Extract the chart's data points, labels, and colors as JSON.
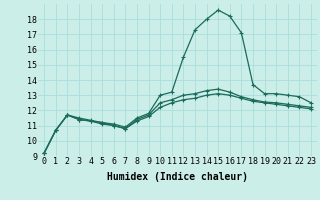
{
  "xlabel": "Humidex (Indice chaleur)",
  "background_color": "#cceee8",
  "grid_color": "#aadddd",
  "line_color": "#1a6b5a",
  "xlim": [
    -0.5,
    23.5
  ],
  "ylim": [
    9,
    19
  ],
  "yticks": [
    9,
    10,
    11,
    12,
    13,
    14,
    15,
    16,
    17,
    18
  ],
  "xticks": [
    0,
    1,
    2,
    3,
    4,
    5,
    6,
    7,
    8,
    9,
    10,
    11,
    12,
    13,
    14,
    15,
    16,
    17,
    18,
    19,
    20,
    21,
    22,
    23
  ],
  "line1_x": [
    0,
    1,
    2,
    3,
    4,
    5,
    6,
    7,
    8,
    9,
    10,
    11,
    12,
    13,
    14,
    15,
    16,
    17,
    18,
    19,
    20,
    21,
    22,
    23
  ],
  "line1_y": [
    9.2,
    10.7,
    11.7,
    11.5,
    11.35,
    11.2,
    11.1,
    10.9,
    11.5,
    11.8,
    13.0,
    13.2,
    15.5,
    17.3,
    18.0,
    18.6,
    18.2,
    17.1,
    13.7,
    13.1,
    13.1,
    13.0,
    12.9,
    12.5
  ],
  "line2_x": [
    0,
    1,
    2,
    3,
    4,
    5,
    6,
    7,
    8,
    9,
    10,
    11,
    12,
    13,
    14,
    15,
    16,
    17,
    18,
    19,
    20,
    21,
    22,
    23
  ],
  "line2_y": [
    9.2,
    10.7,
    11.7,
    11.4,
    11.3,
    11.2,
    11.0,
    10.8,
    11.4,
    11.7,
    12.5,
    12.7,
    13.0,
    13.1,
    13.3,
    13.4,
    13.2,
    12.9,
    12.7,
    12.55,
    12.5,
    12.4,
    12.3,
    12.2
  ],
  "line3_x": [
    0,
    1,
    2,
    3,
    4,
    5,
    6,
    7,
    8,
    9,
    10,
    11,
    12,
    13,
    14,
    15,
    16,
    17,
    18,
    19,
    20,
    21,
    22,
    23
  ],
  "line3_y": [
    9.2,
    10.7,
    11.7,
    11.4,
    11.3,
    11.1,
    11.0,
    10.8,
    11.3,
    11.6,
    12.2,
    12.5,
    12.7,
    12.8,
    13.0,
    13.1,
    13.0,
    12.8,
    12.6,
    12.5,
    12.4,
    12.3,
    12.2,
    12.1
  ],
  "marker": "+",
  "markersize": 3,
  "linewidth": 0.9,
  "xlabel_fontsize": 7,
  "tick_fontsize": 6
}
